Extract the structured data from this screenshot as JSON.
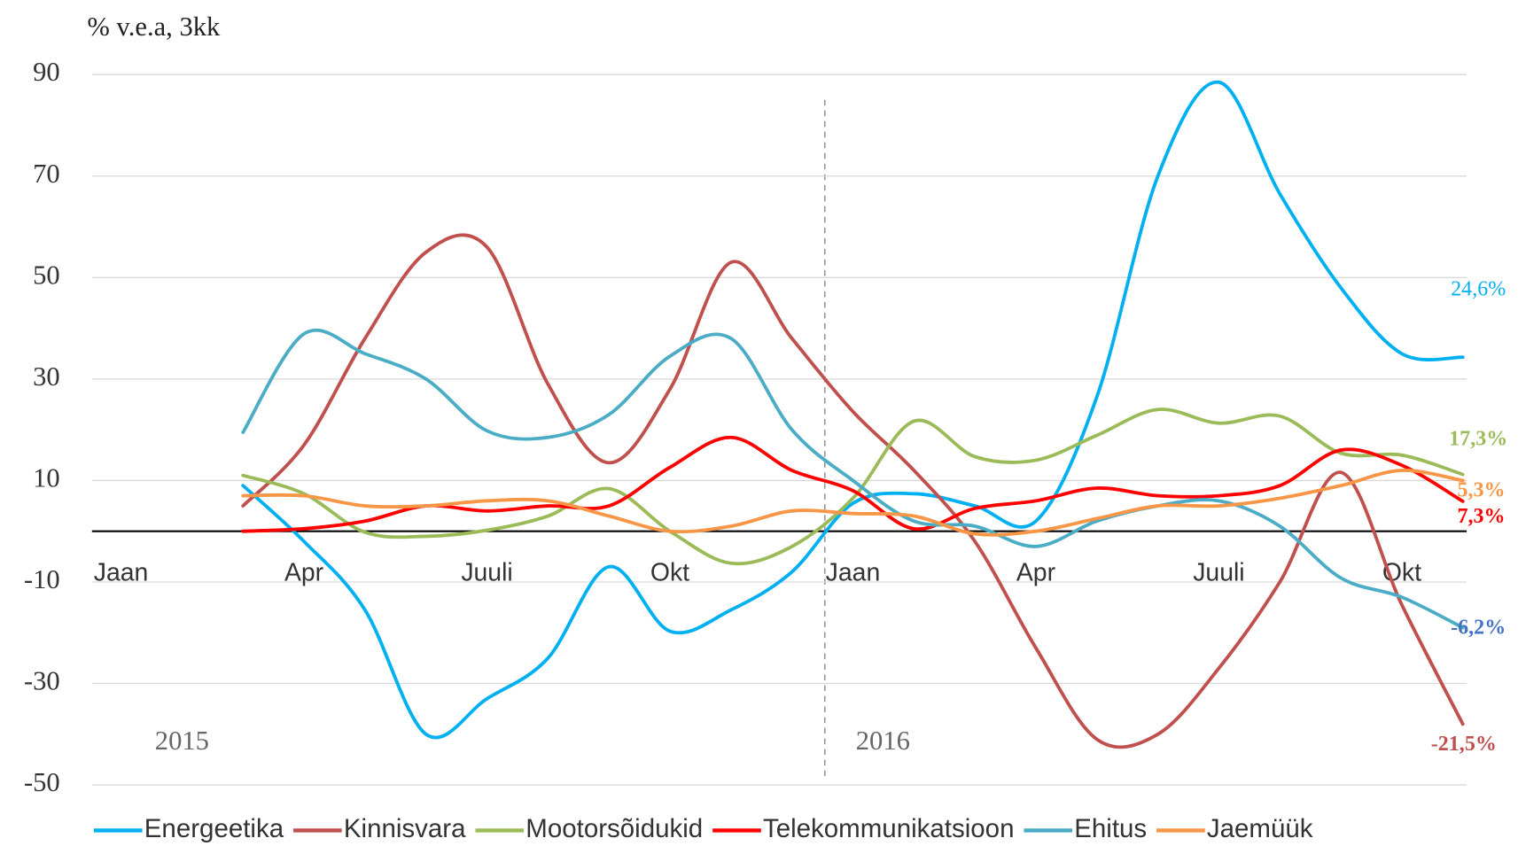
{
  "chart_data": {
    "type": "line",
    "y_axis_label": "% v.e.a, 3kk",
    "categories": [
      "Jaan",
      null,
      null,
      "Apr",
      null,
      null,
      "Juuli",
      null,
      null,
      "Okt",
      null,
      null,
      "Jaan",
      null,
      null,
      "Apr",
      null,
      null,
      "Juuli",
      null,
      null,
      "Okt",
      null
    ],
    "year_labels": [
      "2015",
      "2016"
    ],
    "ylim": [
      -50,
      90
    ],
    "yticks": [
      -50,
      -30,
      -10,
      10,
      30,
      50,
      70,
      90
    ],
    "grid": true,
    "legend": "bottom",
    "series": [
      {
        "name": "Energeetika",
        "color": "#00b0f0",
        "values": [
          null,
          null,
          9,
          -2,
          -15.5,
          -40,
          -33,
          -25,
          -7,
          -19.7,
          -15.5,
          -8,
          5.5,
          7.4,
          5,
          2,
          26.5,
          70,
          88.5,
          66.5,
          48,
          35,
          34.3
        ]
      },
      {
        "name": "Kinnisvara",
        "color": "#c0504d",
        "values": [
          null,
          null,
          5,
          17,
          38,
          55,
          56,
          29,
          13.5,
          28,
          53,
          38,
          23.6,
          12,
          -2,
          -23,
          -41,
          -40,
          -27,
          -10,
          11.6,
          -14.5,
          -38
        ]
      },
      {
        "name": "Mootorsõidukid",
        "color": "#9bbb59",
        "values": [
          null,
          null,
          11,
          7.4,
          -0.2,
          -1,
          0.2,
          3,
          8.4,
          0,
          -6.3,
          -3,
          6.5,
          21.7,
          14.7,
          14,
          18.9,
          24,
          21.3,
          22.7,
          15.4,
          15,
          11.2
        ]
      },
      {
        "name": "Telekommunikatsioon",
        "color": "#ff0000",
        "values": [
          null,
          null,
          0,
          0.5,
          2,
          5,
          4,
          5,
          5,
          12.6,
          18.5,
          12,
          8,
          0.5,
          4.5,
          6,
          8.5,
          7,
          7,
          9,
          16,
          13,
          5.9
        ]
      },
      {
        "name": "Ehitus",
        "color": "#4bacc6",
        "values": [
          null,
          null,
          19.5,
          38.9,
          35,
          30,
          19.8,
          18.5,
          23,
          34.5,
          38,
          20,
          10,
          2,
          1,
          -3,
          2,
          5,
          6,
          1,
          -9.2,
          -13,
          -19
        ]
      },
      {
        "name": "Jaemüük",
        "color": "#f79646",
        "values": [
          null,
          null,
          7,
          7,
          5,
          5,
          6,
          6,
          3,
          0,
          1,
          4,
          3.5,
          3,
          -0.5,
          0,
          2.5,
          5,
          5,
          6.5,
          9,
          12,
          10
        ]
      }
    ],
    "annotations": [
      {
        "text": "24,6%",
        "color": "#00b0f0"
      },
      {
        "text": "17,3%",
        "color": "#9bbb59"
      },
      {
        "text": "5,3%",
        "color": "#f79646"
      },
      {
        "text": "7,3%",
        "color": "#ff0000"
      },
      {
        "text": "-6,2%",
        "color": "#4472c4"
      },
      {
        "text": "-21,5%",
        "color": "#c0504d"
      }
    ]
  }
}
